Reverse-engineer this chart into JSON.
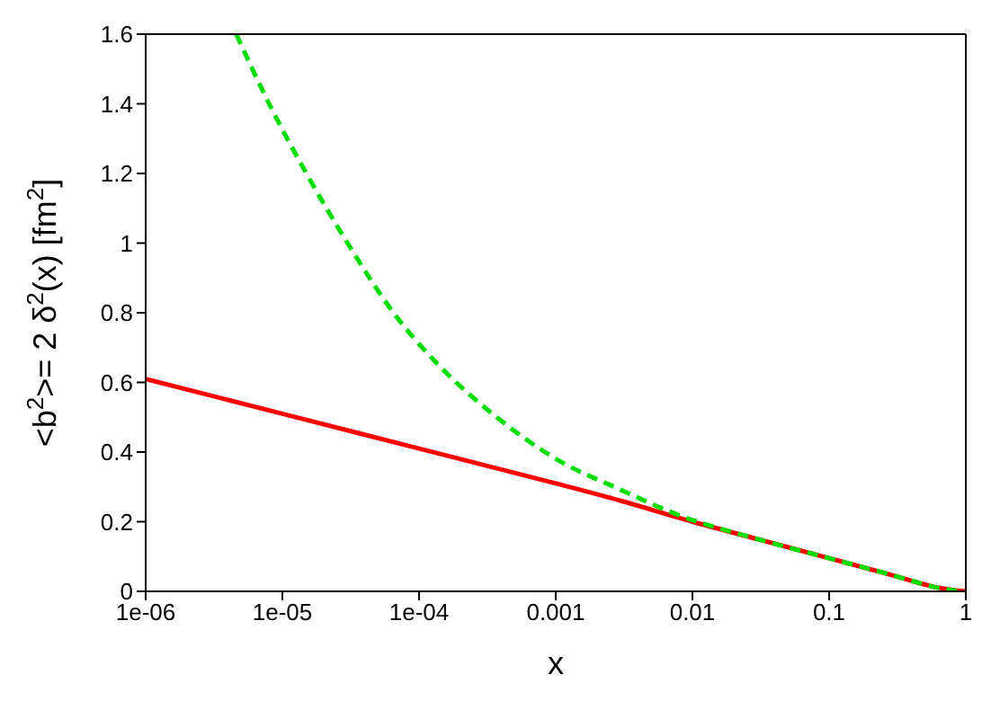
{
  "chart_data": {
    "type": "line",
    "xlabel": "x",
    "ylabel": "<b$^{2}$>= 2 δ$^{2}$(x) [fm$^{2}$]",
    "log": "x",
    "xlim": [
      1e-06,
      1
    ],
    "ylim": [
      0,
      1.6
    ],
    "xticks": [
      {
        "value": 1e-06,
        "label": "1e-06"
      },
      {
        "value": 1e-05,
        "label": "1e-05"
      },
      {
        "value": 0.0001,
        "label": "1e-04"
      },
      0.001,
      0.01,
      0.1,
      1
    ],
    "yticks": [
      0,
      0.2,
      0.4,
      0.6,
      0.8,
      1,
      1.2,
      1.4,
      1.6
    ],
    "series": [
      {
        "color": "#ff0000",
        "line_style": "solid",
        "x": [
          1e-06,
          1e-05,
          0.0001,
          0.001,
          0.003,
          0.01,
          0.03,
          0.1,
          0.3,
          0.6,
          1
        ],
        "values": [
          0.61,
          0.51,
          0.41,
          0.31,
          0.26,
          0.2,
          0.15,
          0.095,
          0.045,
          0.012,
          0
        ]
      },
      {
        "color": "#00dd00",
        "line_style": "dashed",
        "x": [
          4.6e-06,
          8e-06,
          1.5e-05,
          3e-05,
          6.5e-05,
          0.000135,
          0.00037,
          0.00105,
          0.0029,
          0.0078,
          0.03,
          0.1,
          0.3,
          0.6,
          0.9
        ],
        "values": [
          1.6,
          1.4,
          1.2,
          1.0,
          0.8,
          0.655,
          0.5,
          0.376,
          0.294,
          0.22,
          0.15,
          0.095,
          0.045,
          0.012,
          0
        ]
      }
    ]
  }
}
